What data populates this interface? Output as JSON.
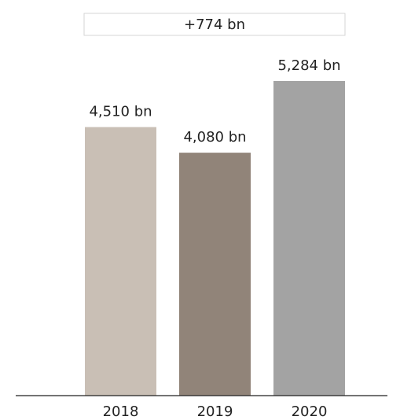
{
  "chart_data": {
    "type": "bar",
    "categories": [
      "2018",
      "2019",
      "2020"
    ],
    "values": [
      4510,
      4080,
      5284
    ],
    "value_labels": [
      "4,510 bn",
      "4,080 bn",
      "5,284 bn"
    ],
    "colors": [
      "#c9bfb5",
      "#918479",
      "#a3a3a3"
    ],
    "annotation": "+774 bn",
    "ylim": [
      0,
      5284
    ],
    "grid": false,
    "legend": "none"
  }
}
